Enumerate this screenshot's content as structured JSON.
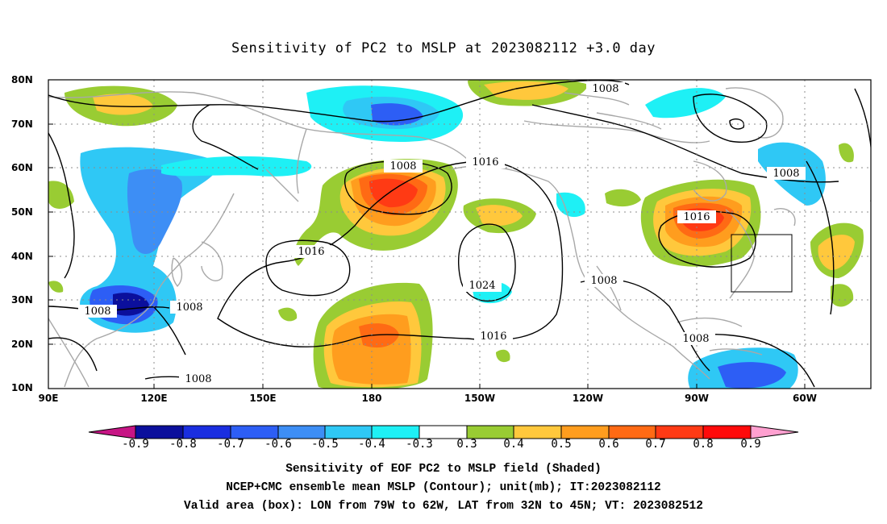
{
  "title": "Sensitivity of PC2 to MSLP at 2023082112 +3.0 day",
  "map": {
    "lat_labels": [
      "80N",
      "70N",
      "60N",
      "50N",
      "40N",
      "30N",
      "20N",
      "10N"
    ],
    "lon_labels": [
      "90E",
      "120E",
      "150E",
      "180",
      "150W",
      "120W",
      "90W",
      "60W"
    ],
    "contour_labels": [
      {
        "text": "1008",
        "name": "contour-label-1008-arctic"
      },
      {
        "text": "1008",
        "name": "contour-label-1008-nw-atlantic"
      },
      {
        "text": "1008",
        "name": "contour-label-1008-aleutian"
      },
      {
        "text": "1016",
        "name": "contour-label-1016-north-pacific"
      },
      {
        "text": "1016",
        "name": "contour-label-1016-northeast-us"
      },
      {
        "text": "1016",
        "name": "contour-label-1016-west-pacific"
      },
      {
        "text": "1024",
        "name": "contour-label-1024-pacific-high"
      },
      {
        "text": "1016",
        "name": "contour-label-1016-subtropical"
      },
      {
        "text": "1008",
        "name": "contour-label-1008-mexico"
      },
      {
        "text": "1008",
        "name": "contour-label-1008-south-china"
      },
      {
        "text": "1008",
        "name": "contour-label-1008-east-china"
      },
      {
        "text": "1008",
        "name": "contour-label-1008-caribbean"
      },
      {
        "text": "1008",
        "name": "contour-label-1008-philippines"
      }
    ],
    "valid_box": {
      "lon_from": "79W",
      "lon_to": "62W",
      "lat_from": "32N",
      "lat_to": "45N"
    }
  },
  "colorbar": {
    "ticks": [
      "-0.9",
      "-0.8",
      "-0.7",
      "-0.6",
      "-0.5",
      "-0.4",
      "-0.3",
      "0.3",
      "0.4",
      "0.5",
      "0.6",
      "0.7",
      "0.8",
      "0.9"
    ],
    "colors": [
      "#0b0f9c",
      "#1a2ee0",
      "#2d5ef5",
      "#3d8ef5",
      "#2fc8f5",
      "#1ef0f5",
      "#ffffff",
      "#99cc33",
      "#ffc83c",
      "#ff9d1e",
      "#ff6a14",
      "#ff3a14",
      "#ff0a0a"
    ],
    "left_arrow_color": "#c71585",
    "right_arrow_color": "#ffa0d0"
  },
  "captions": [
    "Sensitivity of EOF PC2 to MSLP field (Shaded)",
    "NCEP+CMC ensemble mean MSLP (Contour); unit(mb); IT:2023082112",
    "Valid area (box): LON from 79W to 62W, LAT from 32N to 45N; VT: 2023082512"
  ]
}
